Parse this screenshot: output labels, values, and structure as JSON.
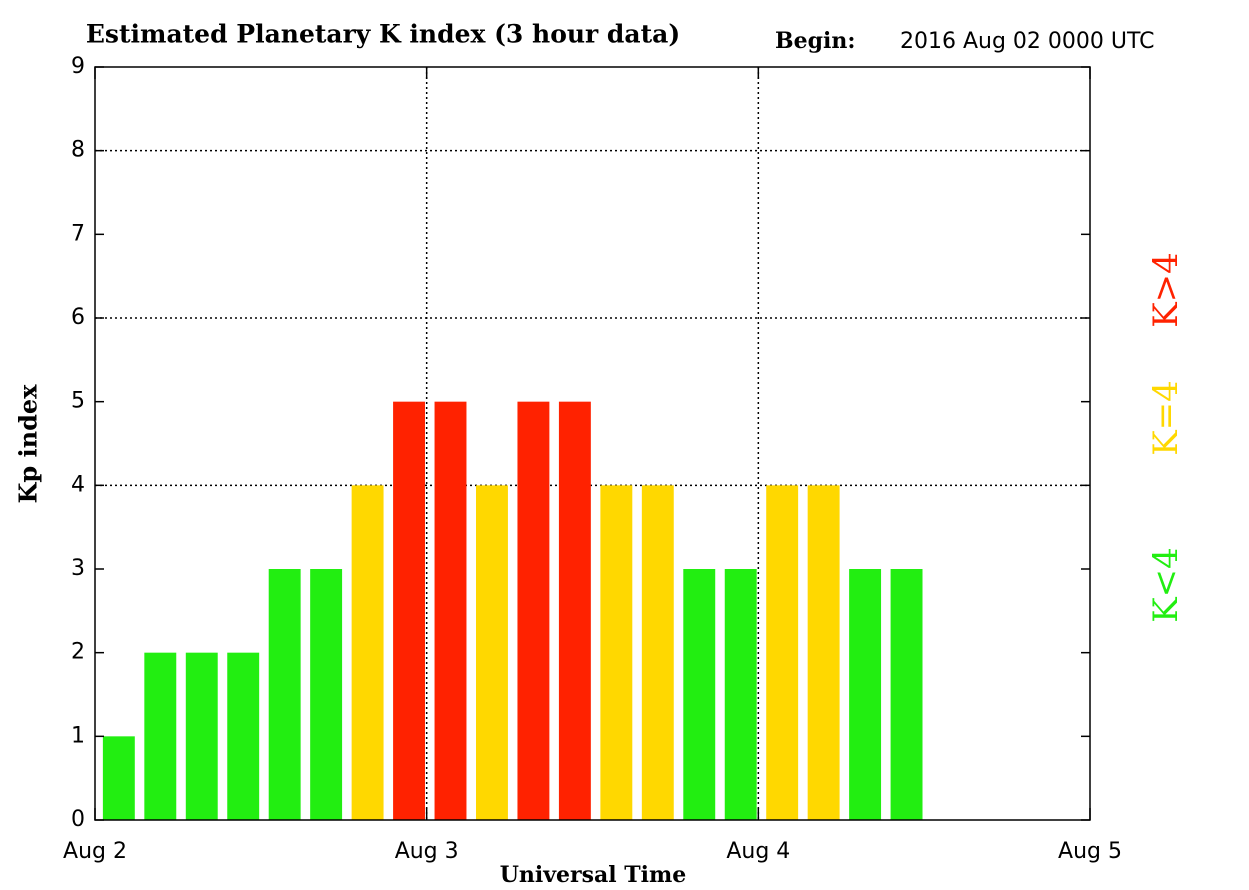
{
  "chart_data": {
    "type": "bar",
    "title": "Estimated Planetary K index (3 hour data)",
    "begin_label": "Begin:",
    "begin": "2016 Aug 02 0000 UTC",
    "ylabel": "Kp index",
    "xlabel": "Universal Time",
    "x": [
      "2016-08-02T00:00",
      "2016-08-02T03:00",
      "2016-08-02T06:00",
      "2016-08-02T09:00",
      "2016-08-02T12:00",
      "2016-08-02T15:00",
      "2016-08-02T18:00",
      "2016-08-02T21:00",
      "2016-08-03T00:00",
      "2016-08-03T03:00",
      "2016-08-03T06:00",
      "2016-08-03T09:00",
      "2016-08-03T12:00",
      "2016-08-03T15:00",
      "2016-08-03T18:00",
      "2016-08-03T21:00",
      "2016-08-04T00:00",
      "2016-08-04T03:00",
      "2016-08-04T06:00",
      "2016-08-04T09:00"
    ],
    "values": [
      1,
      2,
      2,
      2,
      3,
      3,
      4,
      5,
      5,
      4,
      5,
      5,
      4,
      4,
      3,
      3,
      4,
      4,
      3,
      3
    ],
    "colors": [
      "#22ee11",
      "#22ee11",
      "#22ee11",
      "#22ee11",
      "#22ee11",
      "#22ee11",
      "#ffd800",
      "#ff2200",
      "#ff2200",
      "#ffd800",
      "#ff2200",
      "#ff2200",
      "#ffd800",
      "#ffd800",
      "#22ee11",
      "#22ee11",
      "#ffd800",
      "#ffd800",
      "#22ee11",
      "#22ee11"
    ],
    "ylim": [
      0,
      9
    ],
    "yticks": [
      0,
      1,
      2,
      3,
      4,
      5,
      6,
      7,
      8,
      9
    ],
    "ygrid": [
      4,
      6,
      8
    ],
    "xlim": [
      "2016-08-02T00:00",
      "2016-08-05T00:00"
    ],
    "xticks": [
      {
        "value": "2016-08-02T00:00",
        "label": "Aug 2"
      },
      {
        "value": "2016-08-03T00:00",
        "label": "Aug 3"
      },
      {
        "value": "2016-08-04T00:00",
        "label": "Aug 4"
      },
      {
        "value": "2016-08-05T00:00",
        "label": "Aug 5"
      }
    ],
    "legend": [
      {
        "name": "K<4",
        "color": "#22ee11"
      },
      {
        "name": "K=4",
        "color": "#ffd800"
      },
      {
        "name": "K>4",
        "color": "#ff2200"
      }
    ]
  }
}
